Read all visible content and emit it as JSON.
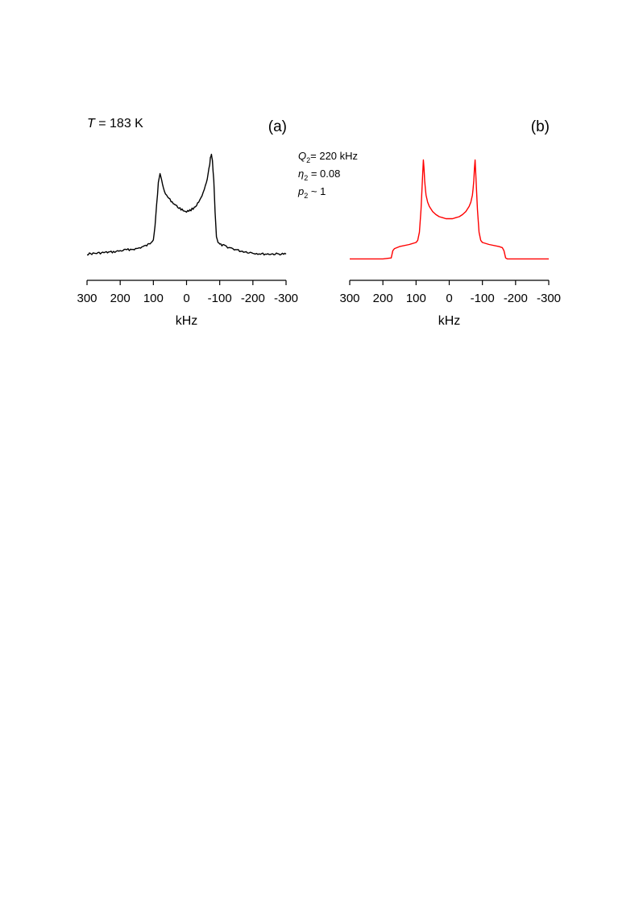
{
  "chart_data": [
    {
      "type": "line",
      "panel_label": "(a)",
      "annotation": {
        "italic": "T",
        "rest": " = 183 K"
      },
      "xlabel": "kHz",
      "xlim": [
        300,
        -300
      ],
      "xticks": [
        300,
        200,
        100,
        0,
        -100,
        -200,
        -300
      ],
      "y_axis_shown": false,
      "grid": false,
      "series": [
        {
          "color": "#000000",
          "style": "experimental, noisy",
          "x": [
            300,
            260,
            220,
            200,
            180,
            150,
            120,
            110,
            100,
            95,
            90,
            85,
            80,
            75,
            70,
            60,
            50,
            40,
            30,
            20,
            10,
            0,
            -10,
            -20,
            -30,
            -40,
            -50,
            -60,
            -65,
            -70,
            -72,
            -75,
            -78,
            -82,
            -86,
            -90,
            -95,
            -100,
            -110,
            -120,
            -140,
            -160,
            -180,
            -200,
            -230,
            -260,
            -300
          ],
          "y": [
            0.05,
            0.06,
            0.07,
            0.08,
            0.09,
            0.1,
            0.13,
            0.15,
            0.19,
            0.32,
            0.52,
            0.72,
            0.8,
            0.75,
            0.67,
            0.6,
            0.56,
            0.53,
            0.5,
            0.48,
            0.46,
            0.45,
            0.46,
            0.48,
            0.51,
            0.55,
            0.62,
            0.72,
            0.8,
            0.9,
            0.95,
            0.98,
            0.93,
            0.75,
            0.45,
            0.22,
            0.16,
            0.14,
            0.13,
            0.12,
            0.1,
            0.08,
            0.07,
            0.06,
            0.05,
            0.05,
            0.05
          ]
        }
      ]
    },
    {
      "type": "line",
      "panel_label": "(b)",
      "parameters": [
        {
          "symbol": "Q",
          "sub": "2",
          "text": "= 220 kHz"
        },
        {
          "symbol": "η",
          "sub": "2",
          "text": " = 0.08"
        },
        {
          "symbol": "p",
          "sub": "2",
          "text": " ~ 1"
        }
      ],
      "xlabel": "kHz",
      "xlim": [
        300,
        -300
      ],
      "xticks": [
        300,
        200,
        100,
        0,
        -100,
        -200,
        -300
      ],
      "y_axis_shown": false,
      "grid": false,
      "series": [
        {
          "color": "#ff0000",
          "style": "simulated, smooth",
          "x": [
            300,
            250,
            200,
            175,
            170,
            165,
            150,
            120,
            100,
            95,
            90,
            85,
            80,
            78,
            76,
            74,
            72,
            70,
            65,
            60,
            50,
            40,
            30,
            20,
            10,
            0,
            -10,
            -20,
            -30,
            -40,
            -50,
            -60,
            -65,
            -70,
            -72,
            -74,
            -76,
            -78,
            -80,
            -85,
            -90,
            -95,
            -100,
            -120,
            -150,
            -160,
            -165,
            -170,
            -175,
            -200,
            -250,
            -300
          ],
          "y": [
            0.02,
            0.02,
            0.02,
            0.03,
            0.1,
            0.12,
            0.14,
            0.16,
            0.18,
            0.2,
            0.28,
            0.5,
            0.85,
            0.98,
            0.9,
            0.78,
            0.7,
            0.64,
            0.57,
            0.53,
            0.48,
            0.45,
            0.43,
            0.42,
            0.41,
            0.41,
            0.41,
            0.42,
            0.43,
            0.45,
            0.48,
            0.53,
            0.57,
            0.64,
            0.7,
            0.78,
            0.9,
            0.98,
            0.85,
            0.5,
            0.28,
            0.2,
            0.18,
            0.16,
            0.14,
            0.13,
            0.1,
            0.03,
            0.02,
            0.02,
            0.02,
            0.02
          ]
        }
      ]
    }
  ]
}
